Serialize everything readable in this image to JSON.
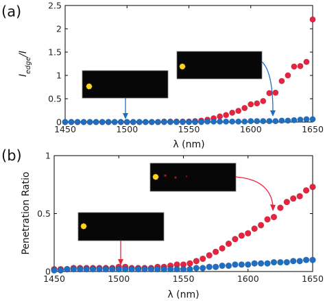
{
  "chart_data": [
    {
      "type": "scatter",
      "panel_label": "(a)",
      "xlabel": "λ (nm)",
      "ylabel": "I_edge/I",
      "ylabel_main": "I",
      "ylabel_sub": "edge",
      "ylabel_rest": "/I",
      "xlim": [
        1450,
        1650
      ],
      "ylim": [
        0,
        2.5
      ],
      "xticks": [
        "1450",
        "1500",
        "1550",
        "1600",
        "1650"
      ],
      "yticks": [
        "0",
        "0.5",
        "1",
        "1.5",
        "2",
        "2.5"
      ],
      "grid": false,
      "series": [
        {
          "color": "#e8223f",
          "x": [
            1450,
            1455,
            1460,
            1465,
            1470,
            1475,
            1480,
            1485,
            1490,
            1495,
            1500,
            1505,
            1510,
            1515,
            1520,
            1525,
            1530,
            1535,
            1540,
            1545,
            1550,
            1555,
            1560,
            1565,
            1570,
            1575,
            1580,
            1585,
            1590,
            1595,
            1600,
            1605,
            1610,
            1615,
            1620,
            1625,
            1630,
            1635,
            1640,
            1645,
            1650
          ],
          "y": [
            0.0,
            0.0,
            0.0,
            0.0,
            0.0,
            0.0,
            0.0,
            0.0,
            0.0,
            0.0,
            0.0,
            0.0,
            0.0,
            0.0,
            0.0,
            0.0,
            0.01,
            0.01,
            0.01,
            0.01,
            0.01,
            0.02,
            0.03,
            0.05,
            0.08,
            0.12,
            0.15,
            0.2,
            0.24,
            0.3,
            0.38,
            0.4,
            0.45,
            0.62,
            0.63,
            0.88,
            1.0,
            1.19,
            1.2,
            1.29,
            2.2
          ]
        },
        {
          "color": "#1e6fc4",
          "x": [
            1450,
            1455,
            1460,
            1465,
            1470,
            1475,
            1480,
            1485,
            1490,
            1495,
            1500,
            1505,
            1510,
            1515,
            1520,
            1525,
            1530,
            1535,
            1540,
            1545,
            1550,
            1555,
            1560,
            1565,
            1570,
            1575,
            1580,
            1585,
            1590,
            1595,
            1600,
            1605,
            1610,
            1615,
            1620,
            1625,
            1630,
            1635,
            1640,
            1645,
            1650
          ],
          "y": [
            0.0,
            0.0,
            0.0,
            0.0,
            0.0,
            0.0,
            0.0,
            0.0,
            0.0,
            0.0,
            0.0,
            0.0,
            0.0,
            0.0,
            0.0,
            0.0,
            0.0,
            0.0,
            0.0,
            0.0,
            0.0,
            0.0,
            0.0,
            0.01,
            0.01,
            0.01,
            0.01,
            0.01,
            0.01,
            0.01,
            0.02,
            0.02,
            0.02,
            0.02,
            0.02,
            0.03,
            0.03,
            0.04,
            0.05,
            0.06,
            0.06
          ]
        }
      ]
    },
    {
      "type": "scatter",
      "panel_label": "(b)",
      "xlabel": "λ (nm)",
      "ylabel": "Penetration Ratio",
      "xlim": [
        1450,
        1650
      ],
      "ylim": [
        0,
        1
      ],
      "xticks": [
        "1450",
        "1500",
        "1550",
        "1600",
        "1650"
      ],
      "yticks": [
        "0",
        "0.5",
        "1"
      ],
      "grid": false,
      "series": [
        {
          "color": "#e8223f",
          "x": [
            1450,
            1455,
            1460,
            1465,
            1470,
            1475,
            1480,
            1485,
            1490,
            1495,
            1500,
            1505,
            1510,
            1515,
            1520,
            1525,
            1530,
            1535,
            1540,
            1545,
            1550,
            1555,
            1560,
            1565,
            1570,
            1575,
            1580,
            1585,
            1590,
            1595,
            1600,
            1605,
            1610,
            1615,
            1620,
            1625,
            1630,
            1635,
            1640,
            1645,
            1650
          ],
          "y": [
            0.02,
            0.02,
            0.02,
            0.03,
            0.03,
            0.03,
            0.03,
            0.03,
            0.03,
            0.03,
            0.04,
            0.04,
            0.03,
            0.03,
            0.03,
            0.03,
            0.04,
            0.04,
            0.05,
            0.06,
            0.06,
            0.07,
            0.09,
            0.11,
            0.14,
            0.17,
            0.2,
            0.24,
            0.28,
            0.31,
            0.33,
            0.37,
            0.4,
            0.45,
            0.47,
            0.55,
            0.6,
            0.63,
            0.65,
            0.7,
            0.73
          ]
        },
        {
          "color": "#1e6fc4",
          "x": [
            1450,
            1455,
            1460,
            1465,
            1470,
            1475,
            1480,
            1485,
            1490,
            1495,
            1500,
            1505,
            1510,
            1515,
            1520,
            1525,
            1530,
            1535,
            1540,
            1545,
            1550,
            1555,
            1560,
            1565,
            1570,
            1575,
            1580,
            1585,
            1590,
            1595,
            1600,
            1605,
            1610,
            1615,
            1620,
            1625,
            1630,
            1635,
            1640,
            1645,
            1650
          ],
          "y": [
            0.01,
            0.01,
            0.02,
            0.02,
            0.02,
            0.02,
            0.02,
            0.02,
            0.02,
            0.02,
            0.02,
            0.02,
            0.02,
            0.02,
            0.02,
            0.02,
            0.02,
            0.02,
            0.02,
            0.02,
            0.02,
            0.02,
            0.03,
            0.03,
            0.04,
            0.04,
            0.05,
            0.05,
            0.06,
            0.06,
            0.06,
            0.07,
            0.07,
            0.07,
            0.08,
            0.08,
            0.08,
            0.09,
            0.09,
            0.1,
            0.1
          ]
        }
      ]
    }
  ]
}
